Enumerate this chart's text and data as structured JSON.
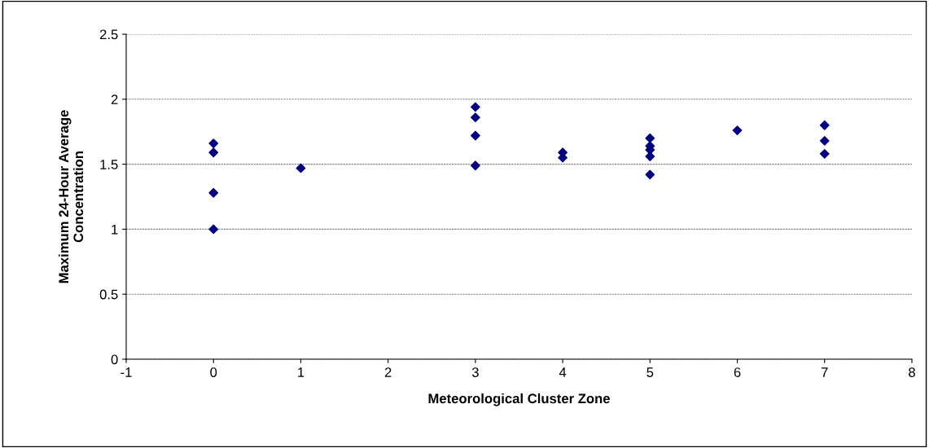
{
  "chart_data": {
    "type": "scatter",
    "xlabel": "Meteorological Cluster Zone",
    "ylabel": "Maximum 24-Hour Average\nConcentration",
    "xlim": [
      -1,
      8
    ],
    "xticks": [
      -1,
      0,
      1,
      2,
      3,
      4,
      5,
      6,
      7,
      8
    ],
    "ylim": [
      0,
      2.5
    ],
    "yticks": [
      0,
      0.5,
      1,
      1.5,
      2,
      2.5
    ],
    "grid": "y",
    "marker": "diamond",
    "series": [
      {
        "color": "#000080",
        "x": [
          0,
          0,
          0,
          0,
          1,
          3,
          3,
          3,
          3,
          4,
          4,
          5,
          5,
          5,
          5,
          5,
          6,
          7,
          7,
          7
        ],
        "values": [
          1.66,
          1.59,
          1.28,
          1.0,
          1.47,
          1.94,
          1.86,
          1.72,
          1.49,
          1.59,
          1.55,
          1.7,
          1.64,
          1.61,
          1.56,
          1.42,
          1.76,
          1.8,
          1.68,
          1.58
        ]
      }
    ]
  }
}
